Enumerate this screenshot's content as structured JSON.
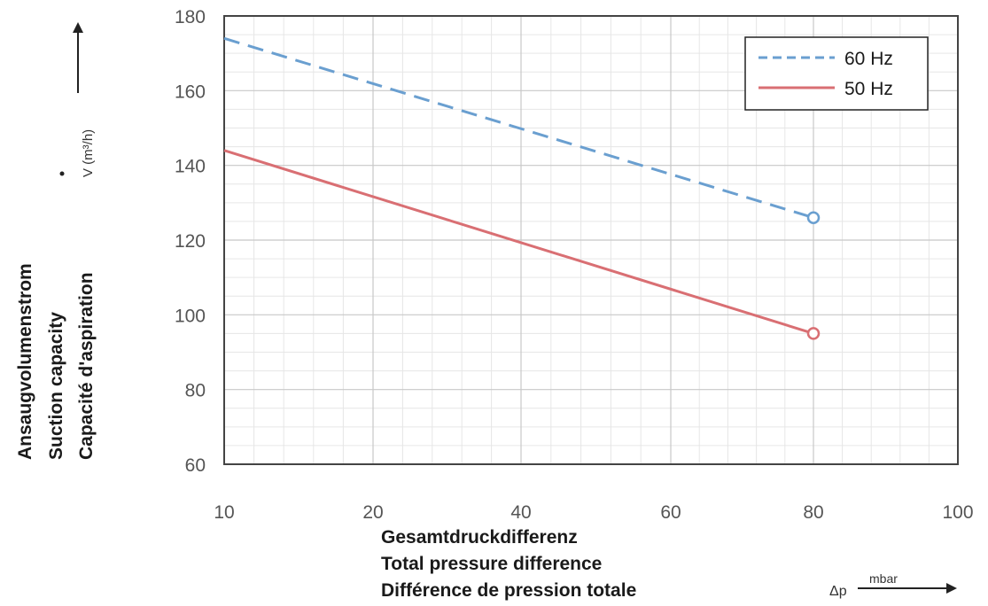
{
  "chart_data": {
    "type": "line",
    "x_axis": {
      "min": 10,
      "max": 100,
      "ticks": [
        10,
        20,
        40,
        60,
        80,
        100
      ],
      "labels": [
        "Gesamtdruckdifferenz",
        "Total pressure difference",
        "Différence de pression totale"
      ],
      "symbol": "Δp",
      "unit": "mbar"
    },
    "y_axis": {
      "min": 60,
      "max": 180,
      "ticks": [
        60,
        80,
        100,
        120,
        140,
        160,
        180
      ],
      "labels": [
        "Ansaugvolumenstrom",
        "Suction capacity",
        "Capacité d'aspiration"
      ],
      "symbol": "V (m³/h)"
    },
    "grid": true,
    "legend_position": "top-right",
    "series": [
      {
        "name": "60 Hz",
        "color": "#6a9fd0",
        "style": "dashed",
        "x": [
          10,
          80
        ],
        "y": [
          174,
          126
        ]
      },
      {
        "name": "50 Hz",
        "color": "#d96f73",
        "style": "solid",
        "x": [
          10,
          80
        ],
        "y": [
          144,
          95
        ]
      }
    ]
  }
}
